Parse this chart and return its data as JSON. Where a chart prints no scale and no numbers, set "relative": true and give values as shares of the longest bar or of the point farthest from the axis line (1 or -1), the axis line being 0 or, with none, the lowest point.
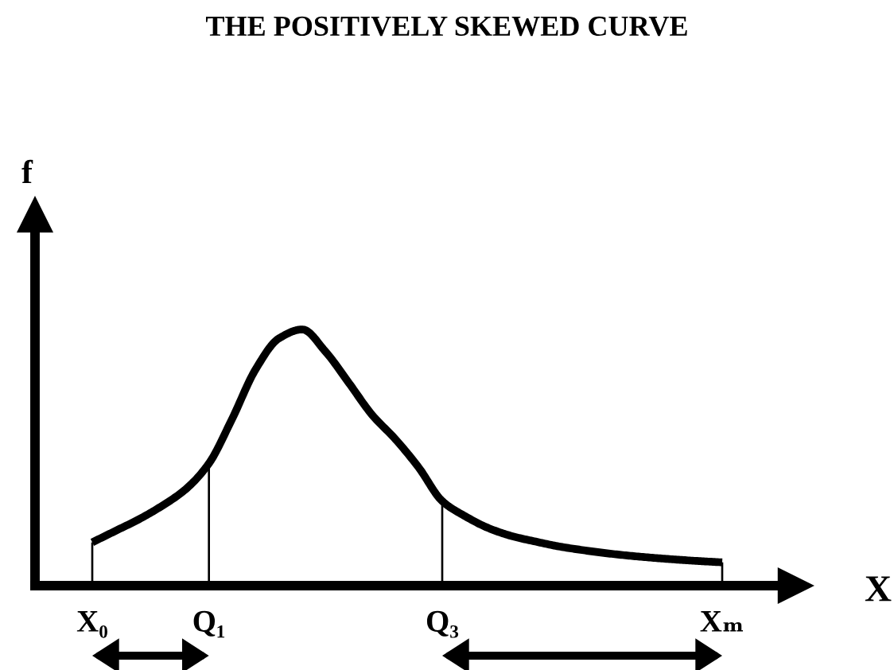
{
  "chart_data": {
    "type": "line",
    "title": "THE POSITIVELY SKEWED CURVE",
    "xlabel": "X",
    "ylabel": "f",
    "relative": true,
    "line_style": "solid",
    "categories": [
      "X₀",
      null,
      null,
      null,
      null,
      "Q₁",
      null,
      null,
      null,
      null,
      null,
      null,
      null,
      null,
      null,
      "Q₃",
      null,
      null,
      null,
      null,
      null,
      null,
      null,
      null,
      null,
      null,
      null,
      "Xₘ"
    ],
    "series": [
      {
        "color": "#000000",
        "values": [
          0.169,
          0.214,
          0.259,
          0.312,
          0.376,
          0.477,
          0.652,
          0.844,
          0.965,
          1,
          0.913,
          0.791,
          0.666,
          0.571,
          0.46,
          0.33,
          0.27,
          0.224,
          0.193,
          0.172,
          0.153,
          0.139,
          0.127,
          0.117,
          0.109,
          0.102,
          0.096,
          0.091
        ]
      },
      {
        "type": "bar",
        "color": "#000000",
        "values": [
          0.169,
          null,
          null,
          null,
          null,
          0.477,
          null,
          null,
          null,
          null,
          null,
          null,
          null,
          null,
          null,
          0.33,
          null,
          null,
          null,
          null,
          null,
          null,
          null,
          null,
          null,
          null,
          null,
          0.091
        ]
      }
    ]
  }
}
